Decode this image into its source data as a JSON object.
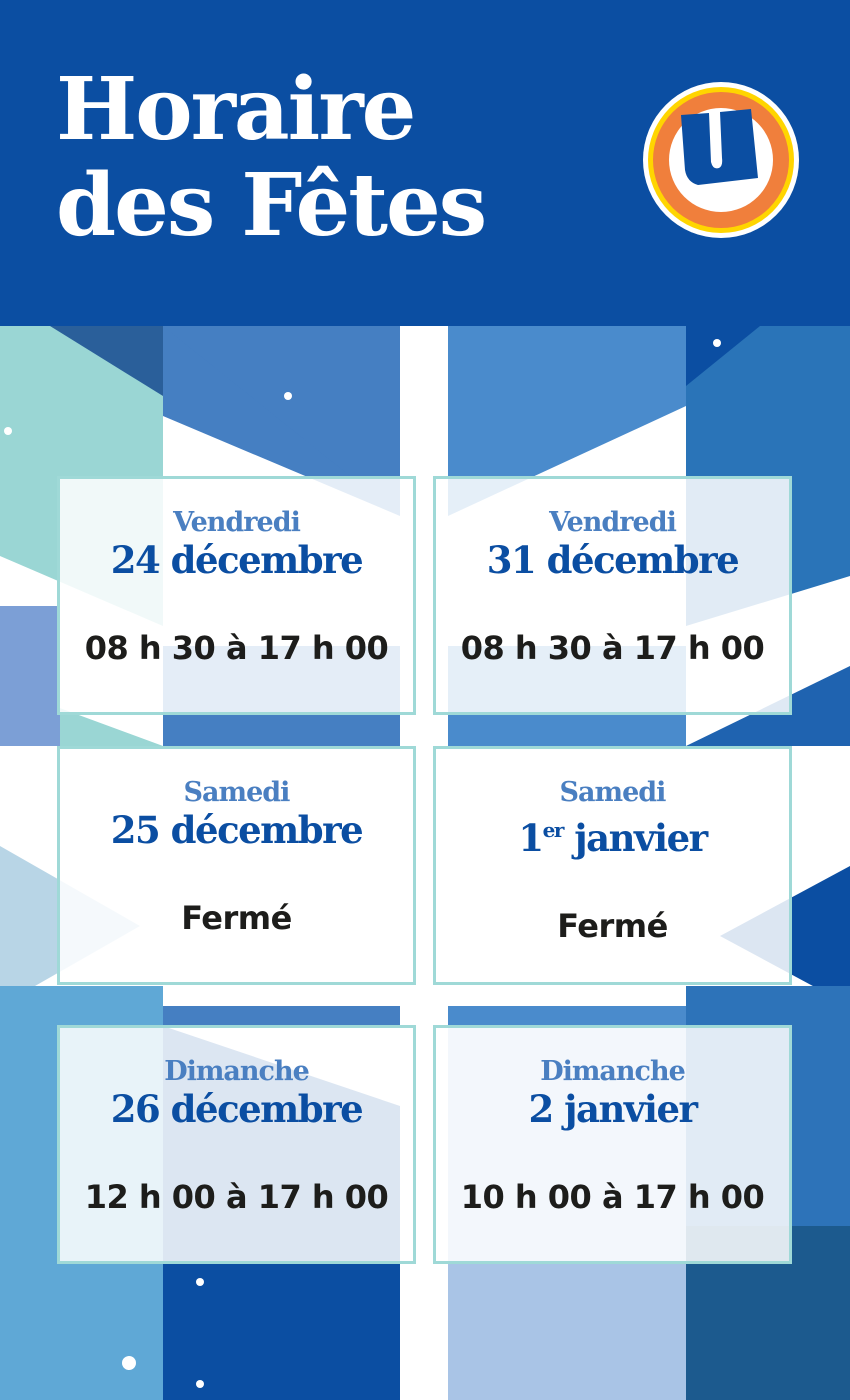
{
  "header": {
    "title_line1": "Horaire",
    "title_line2": "des Fêtes",
    "logo_letter": "U"
  },
  "colors": {
    "brand_blue": "#0b4ea2",
    "logo_orange": "#f07f3c",
    "logo_yellow": "#ffd500",
    "card_border": "#9fd9d7"
  },
  "schedule": [
    {
      "day": "Vendredi",
      "date": "24 décembre",
      "date_sup": "",
      "date_rest": "",
      "hours": "08 h 30 à 17 h 00"
    },
    {
      "day": "Vendredi",
      "date": "31 décembre",
      "date_sup": "",
      "date_rest": "",
      "hours": "08 h 30 à 17 h 00"
    },
    {
      "day": "Samedi",
      "date": "25 décembre",
      "date_sup": "",
      "date_rest": "",
      "hours": "Fermé"
    },
    {
      "day": "Samedi",
      "date": "1",
      "date_sup": "er",
      "date_rest": " janvier",
      "hours": "Fermé"
    },
    {
      "day": "Dimanche",
      "date": "26 décembre",
      "date_sup": "",
      "date_rest": "",
      "hours": "12 h 00 à 17 h 00"
    },
    {
      "day": "Dimanche",
      "date": "2 janvier",
      "date_sup": "",
      "date_rest": "",
      "hours": "10 h 00 à 17 h 00"
    }
  ]
}
